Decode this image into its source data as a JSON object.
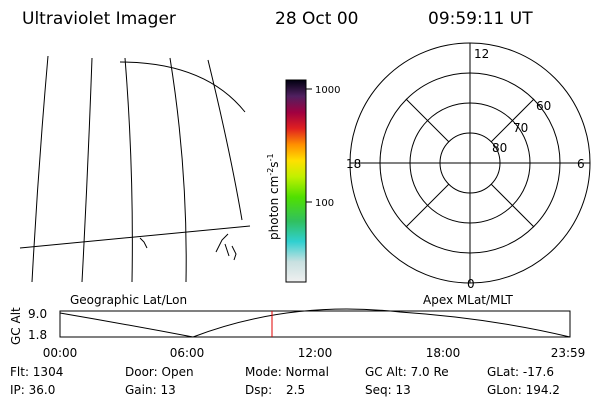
{
  "header": {
    "instrument": "Ultraviolet Imager",
    "date": "28 Oct 00",
    "time": "09:59:11 UT"
  },
  "colorbar": {
    "label": {
      "unit": "photon cm",
      "exp1": "-2",
      "unit2": "s",
      "exp2": "-1"
    },
    "ticks": [
      "1000",
      "100"
    ]
  },
  "polar": {
    "mlt": [
      "12",
      "18",
      "6",
      "0"
    ],
    "mlat": [
      "60",
      "70",
      "80"
    ]
  },
  "panels": {
    "left_title": "Geographic Lat/Lon",
    "right_title": "Apex MLat/MLT"
  },
  "altitude": {
    "axis_label": "GC Alt",
    "ticks": [
      "9.0",
      "1.8"
    ],
    "times": [
      "00:00",
      "06:00",
      "12:00",
      "18:00",
      "23:59"
    ]
  },
  "info": {
    "rows": [
      [
        "Flt: 1304",
        "Door: Open",
        "Mode: Normal",
        "GC Alt: 7.0 Re",
        "GLat: -17.6"
      ],
      [
        "IP: 36.0",
        "Gain: 13",
        "Dsp:",
        "Seq: 13",
        "GLon: 194.2"
      ]
    ],
    "dsp_value": "2.5"
  }
}
